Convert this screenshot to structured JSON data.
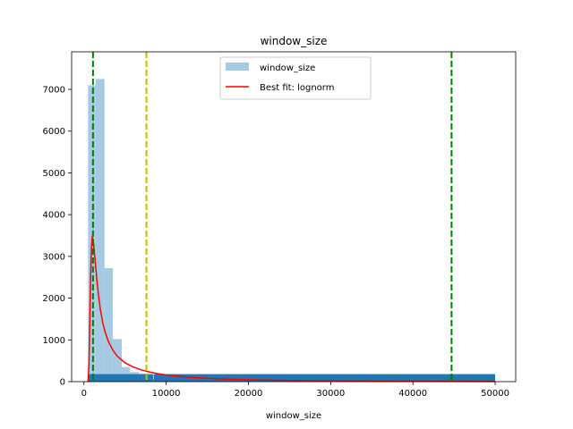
{
  "chart_data": {
    "type": "bar",
    "title": "window_size",
    "xlabel": "window_size",
    "ylabel": "",
    "xlim": [
      -1500,
      52500
    ],
    "ylim": [
      0,
      7900
    ],
    "x_ticks": [
      0,
      10000,
      20000,
      30000,
      40000,
      50000
    ],
    "x_tick_labels": [
      "0",
      "10000",
      "20000",
      "30000",
      "40000",
      "50000"
    ],
    "y_ticks": [
      0,
      1000,
      2000,
      3000,
      4000,
      5000,
      6000,
      7000
    ],
    "y_tick_labels": [
      "0",
      "1000",
      "2000",
      "3000",
      "4000",
      "5000",
      "6000",
      "7000"
    ],
    "histogram": {
      "name": "window_size",
      "color": "#a6cae3",
      "bins": [
        {
          "x0": 500,
          "x1": 1400,
          "count": 7100
        },
        {
          "x0": 1400,
          "x1": 2500,
          "count": 7250
        },
        {
          "x0": 2500,
          "x1": 3500,
          "count": 2720
        },
        {
          "x0": 3500,
          "x1": 4600,
          "count": 1020
        },
        {
          "x0": 4600,
          "x1": 5600,
          "count": 350
        },
        {
          "x0": 5600,
          "x1": 6700,
          "count": 230
        },
        {
          "x0": 6700,
          "x1": 7700,
          "count": 190
        },
        {
          "x0": 7700,
          "x1": 8500,
          "count": 180
        }
      ]
    },
    "rug": {
      "color": "#1f77b4",
      "segments": [
        {
          "x0": 500,
          "x1": 8400,
          "height": 180
        },
        {
          "x0": 8400,
          "x1": 8500,
          "height": 50
        },
        {
          "x0": 8500,
          "x1": 50000,
          "height": 180
        }
      ]
    },
    "fit_curve": {
      "name": "Best fit: lognorm",
      "color": "#ff0000",
      "points": [
        [
          500,
          0
        ],
        [
          600,
          400
        ],
        [
          700,
          1300
        ],
        [
          800,
          2400
        ],
        [
          900,
          3150
        ],
        [
          1000,
          3450
        ],
        [
          1100,
          3420
        ],
        [
          1200,
          3250
        ],
        [
          1400,
          2800
        ],
        [
          1600,
          2380
        ],
        [
          1800,
          2020
        ],
        [
          2000,
          1720
        ],
        [
          2300,
          1400
        ],
        [
          2600,
          1170
        ],
        [
          3000,
          950
        ],
        [
          3500,
          760
        ],
        [
          4000,
          620
        ],
        [
          5000,
          450
        ],
        [
          6000,
          350
        ],
        [
          7000,
          280
        ],
        [
          8000,
          230
        ],
        [
          9000,
          190
        ],
        [
          10000,
          160
        ],
        [
          12000,
          120
        ],
        [
          14000,
          90
        ],
        [
          16000,
          70
        ],
        [
          18000,
          55
        ],
        [
          20000,
          45
        ],
        [
          25000,
          28
        ],
        [
          30000,
          18
        ],
        [
          35000,
          12
        ],
        [
          40000,
          8
        ],
        [
          45000,
          5
        ],
        [
          50000,
          3
        ]
      ]
    },
    "vlines": [
      {
        "x": 1100,
        "color": "#008000"
      },
      {
        "x": 7600,
        "color": "#bfbf00"
      },
      {
        "x": 44700,
        "color": "#008000"
      }
    ],
    "legend": {
      "placement": "top-center",
      "entries": [
        {
          "label": "window_size",
          "kind": "patch",
          "color": "#a6cae3"
        },
        {
          "label": "Best fit: lognorm",
          "kind": "line",
          "color": "#ff0000"
        }
      ]
    }
  }
}
